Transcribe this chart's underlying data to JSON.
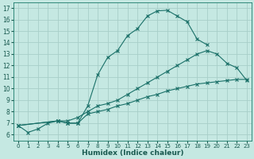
{
  "xlabel": "Humidex (Indice chaleur)",
  "bg_color": "#c5e8e2",
  "line_color": "#1a7068",
  "grid_color": "#a8cec8",
  "xlim": [
    -0.5,
    23.5
  ],
  "ylim": [
    5.5,
    17.5
  ],
  "yticks": [
    6,
    7,
    8,
    9,
    10,
    11,
    12,
    13,
    14,
    15,
    16,
    17
  ],
  "xticks": [
    0,
    1,
    2,
    3,
    4,
    5,
    6,
    7,
    8,
    9,
    10,
    11,
    12,
    13,
    14,
    15,
    16,
    17,
    18,
    19,
    20,
    21,
    22,
    23
  ],
  "series": [
    {
      "x": [
        0,
        1,
        2,
        3,
        4,
        5,
        6,
        7,
        8,
        9,
        10,
        11,
        12,
        13,
        14,
        15,
        16,
        17,
        18,
        19
      ],
      "y": [
        6.8,
        6.2,
        6.5,
        7.0,
        7.2,
        7.0,
        7.0,
        8.5,
        11.2,
        12.7,
        13.3,
        14.6,
        15.2,
        16.3,
        16.75,
        16.8,
        16.3,
        15.8,
        14.3,
        13.8
      ]
    },
    {
      "x": [
        0,
        4,
        5,
        6,
        7,
        8,
        9,
        10,
        11,
        12,
        13,
        14,
        15,
        16,
        17,
        18,
        19,
        20,
        21,
        22,
        23
      ],
      "y": [
        6.8,
        7.2,
        7.2,
        7.5,
        8.0,
        8.5,
        8.7,
        9.0,
        9.5,
        10.0,
        10.5,
        11.0,
        11.5,
        12.0,
        12.5,
        13.0,
        13.3,
        13.0,
        12.2,
        11.8,
        10.7
      ]
    },
    {
      "x": [
        0,
        4,
        5,
        6,
        7,
        8,
        9,
        10,
        11,
        12,
        13,
        14,
        15,
        16,
        17,
        18,
        19,
        20,
        21,
        22,
        23
      ],
      "y": [
        6.8,
        7.2,
        7.0,
        7.0,
        7.8,
        8.0,
        8.2,
        8.5,
        8.7,
        9.0,
        9.3,
        9.5,
        9.8,
        10.0,
        10.2,
        10.4,
        10.5,
        10.6,
        10.7,
        10.8,
        10.8
      ]
    }
  ]
}
